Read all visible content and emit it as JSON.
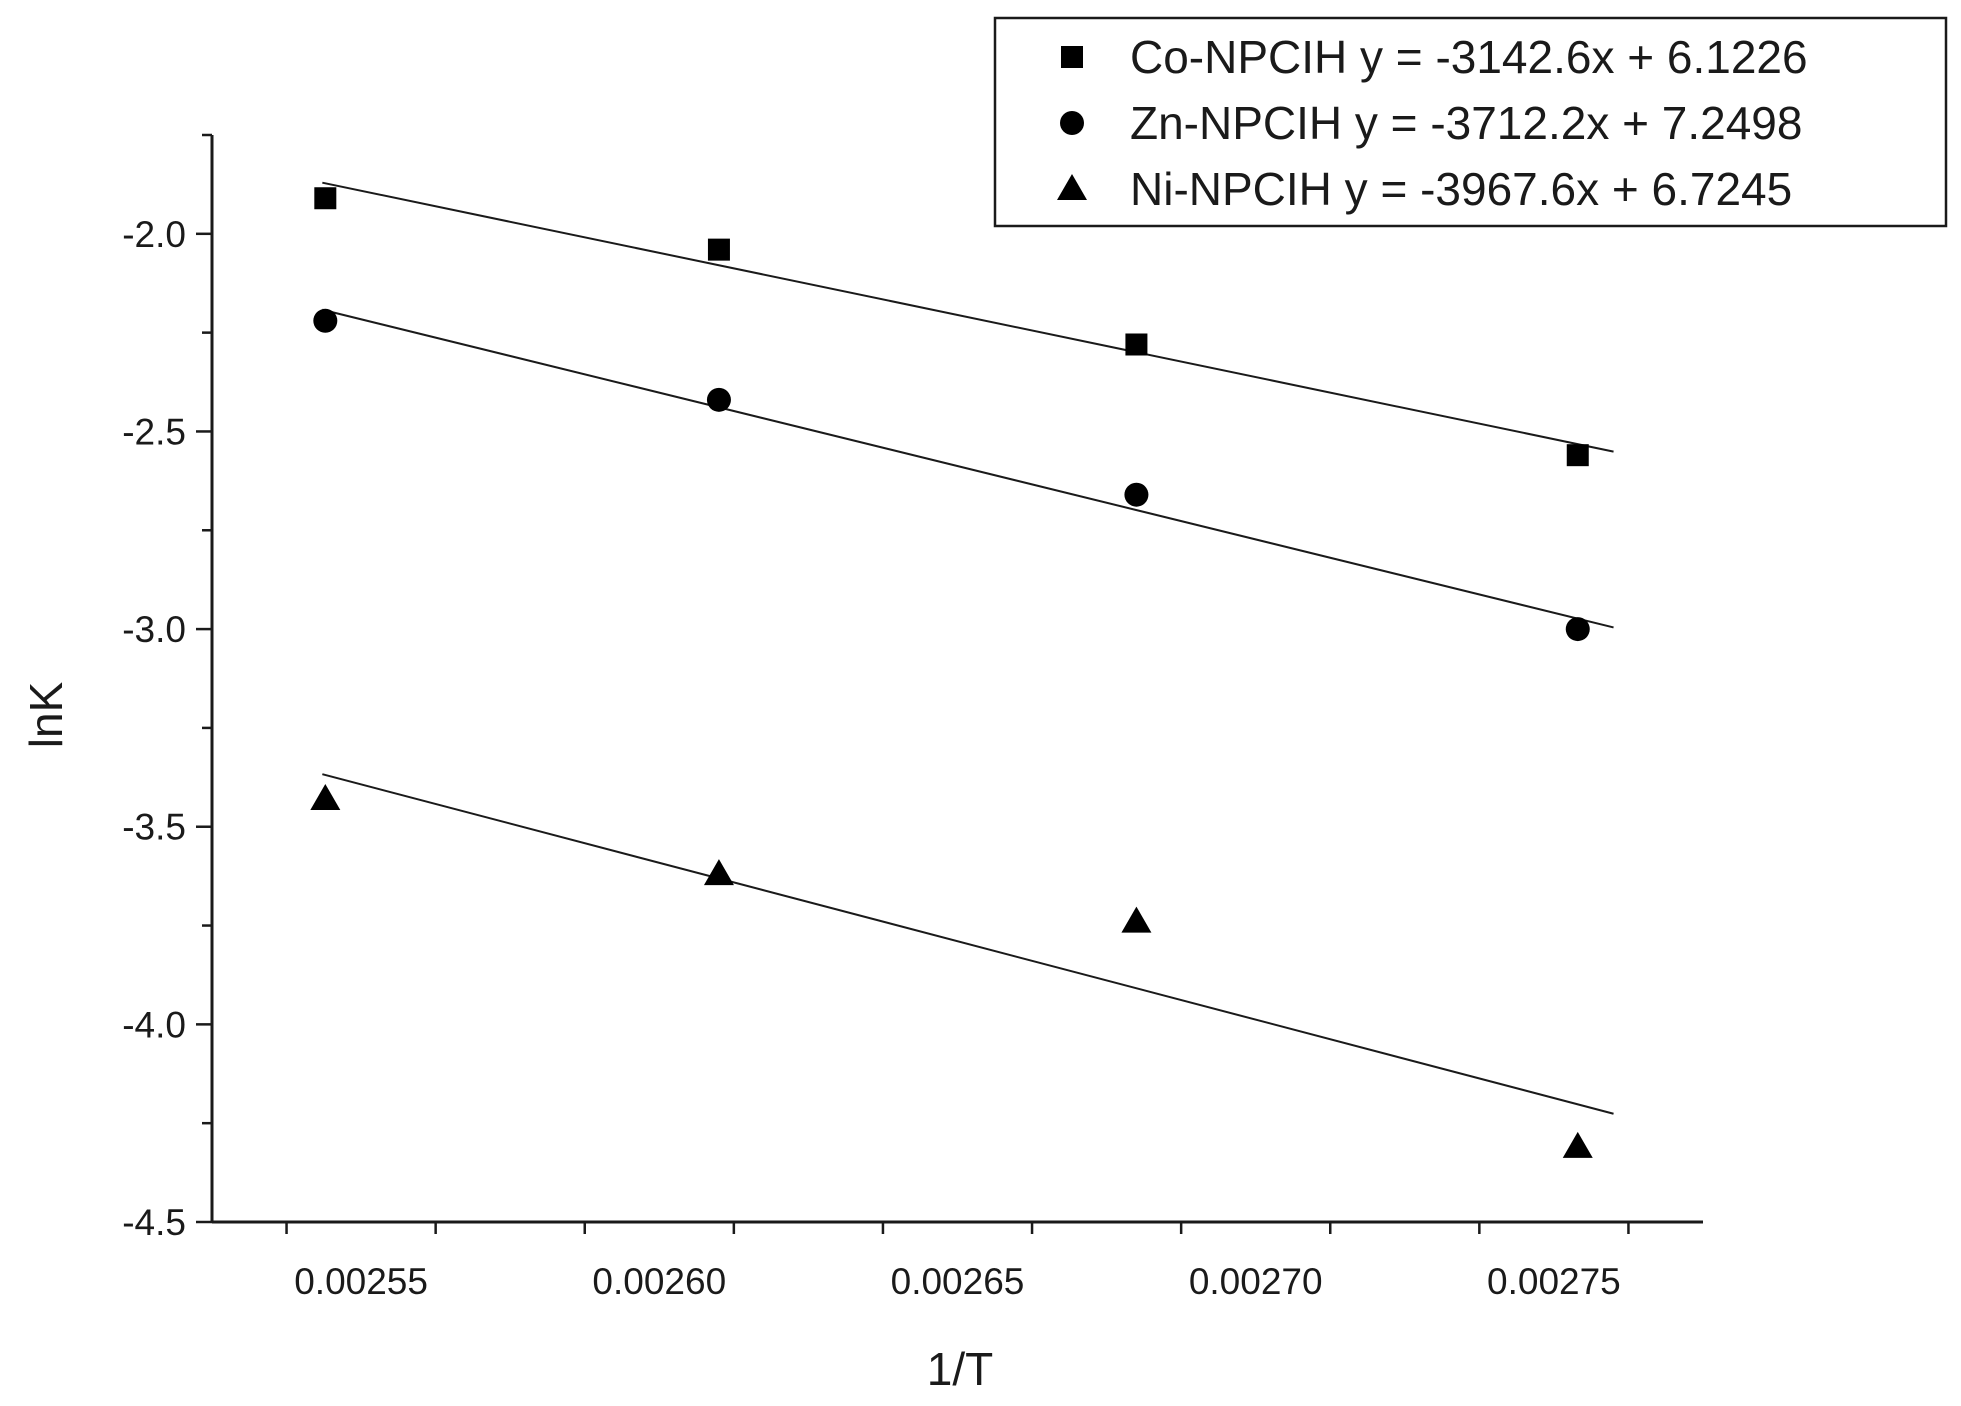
{
  "chart_data": {
    "type": "scatter",
    "xlabel": "1/T",
    "ylabel": "lnK",
    "xlim": [
      0.002525,
      0.002775
    ],
    "ylim": [
      -4.5,
      -1.75
    ],
    "xticks": [
      0.00255,
      0.0026,
      0.00265,
      0.0027,
      0.00275
    ],
    "xtick_labels": [
      "0.00255",
      "0.00260",
      "0.00265",
      "0.00270",
      "0.00275"
    ],
    "yticks": [
      -2.0,
      -2.5,
      -3.0,
      -3.5,
      -4.0,
      -4.5
    ],
    "ytick_labels": [
      "-2.0",
      "-2.5",
      "-3.0",
      "-3.5",
      "-4.0",
      "-4.5"
    ],
    "legend_position": "top-right",
    "grid": false,
    "x": [
      0.002544,
      0.00261,
      0.00268,
      0.002754
    ],
    "series": [
      {
        "name": "Co-NPCIH",
        "marker": "square",
        "legend_label": "Co-NPCIH y = -3142.6x + 6.1226",
        "values": [
          -1.91,
          -2.04,
          -2.28,
          -2.56
        ],
        "fit": {
          "slope": -3142.6,
          "intercept": 6.1226
        }
      },
      {
        "name": "Zn-NPCIH",
        "marker": "circle",
        "legend_label": "Zn-NPCIH y = -3712.2x + 7.2498",
        "values": [
          -2.22,
          -2.42,
          -2.66,
          -3.0
        ],
        "fit": {
          "slope": -3712.2,
          "intercept": 7.2498
        }
      },
      {
        "name": "Ni-NPCIH",
        "marker": "triangle",
        "legend_label": "Ni-NPCIH y = -3967.6x + 6.7245",
        "values": [
          -3.43,
          -3.62,
          -3.74,
          -4.31
        ],
        "fit": {
          "slope": -3967.6,
          "intercept": 6.7245
        }
      }
    ]
  }
}
